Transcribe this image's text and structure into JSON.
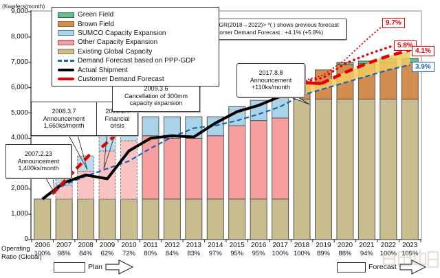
{
  "chart_data": {
    "type": "bar",
    "title": "",
    "unit_label": "(Kwafers/month)",
    "ylabel": "Kwafers/month",
    "ylim": [
      0,
      9000
    ],
    "ytick_step": 1000,
    "grid": false,
    "categories": [
      2006,
      2007,
      2008,
      2009,
      2010,
      2011,
      2012,
      2013,
      2014,
      2015,
      2016,
      2017,
      2018,
      2019,
      2020,
      2021,
      2022,
      2023
    ],
    "planned_years": [
      2007,
      2008,
      2009,
      2010
    ],
    "stack_series": [
      {
        "name": "Existing Global Capacity",
        "color": "#C9BD90",
        "planned_color": "#C9BD90",
        "values": [
          1600,
          1600,
          1600,
          1600,
          1600,
          1600,
          1600,
          1600,
          1600,
          1600,
          1600,
          1600,
          5550,
          5550,
          5550,
          5550,
          5550,
          5550
        ]
      },
      {
        "name": "Other Capacity Expansion",
        "color": "#F79E9E",
        "planned_color": "#F9C3C3",
        "values": [
          0,
          550,
          1100,
          1900,
          2300,
          2500,
          2400,
          2400,
          2500,
          2900,
          3100,
          3200,
          0,
          0,
          0,
          0,
          0,
          0
        ]
      },
      {
        "name": "SUMCO Capacity Expansion",
        "color": "#A9D3E6",
        "planned_color": "#BCDCEC",
        "values": [
          0,
          300,
          600,
          800,
          950,
          750,
          850,
          850,
          750,
          750,
          800,
          800,
          0,
          0,
          0,
          0,
          0,
          0
        ]
      },
      {
        "name": "Brown Field",
        "color": "#D38E4F",
        "planned_color": "#D38E4F",
        "values": [
          0,
          0,
          0,
          0,
          0,
          0,
          0,
          0,
          0,
          0,
          0,
          0,
          650,
          1150,
          1350,
          1400,
          1450,
          1450
        ]
      },
      {
        "name": "Green Field",
        "color": "#66BE8D",
        "planned_color": "#66BE8D",
        "values": [
          0,
          0,
          0,
          0,
          0,
          0,
          0,
          0,
          0,
          0,
          0,
          0,
          0,
          0,
          100,
          100,
          150,
          150
        ]
      }
    ],
    "lines": [
      {
        "name": "Demand Forecast based on PPP-GDP",
        "color": "#1B62B5",
        "width": 2.2,
        "dash": "7,4",
        "points": [
          [
            2006,
            1600
          ],
          [
            2007,
            2150
          ],
          [
            2008,
            2500
          ],
          [
            2009,
            2800
          ],
          [
            2010,
            3100
          ],
          [
            2011,
            3600
          ],
          [
            2012,
            4050
          ],
          [
            2013,
            4400
          ],
          [
            2014,
            4500
          ],
          [
            2015,
            4700
          ],
          [
            2016,
            4950
          ],
          [
            2017,
            5250
          ],
          [
            2018,
            5700
          ],
          [
            2019,
            5950
          ],
          [
            2020,
            6200
          ],
          [
            2021,
            6450
          ],
          [
            2022,
            6700
          ],
          [
            2023,
            6900
          ]
        ]
      },
      {
        "name": "Actual Shipment",
        "color": "#000000",
        "width": 4,
        "dash": "",
        "points": [
          [
            2006,
            1600
          ],
          [
            2007,
            2250
          ],
          [
            2008,
            2550
          ],
          [
            2009,
            2400
          ],
          [
            2010,
            3500
          ],
          [
            2011,
            4000
          ],
          [
            2012,
            4100
          ],
          [
            2013,
            4050
          ],
          [
            2014,
            4600
          ],
          [
            2015,
            5050
          ],
          [
            2016,
            5300
          ],
          [
            2017,
            5650
          ],
          [
            2018,
            6200
          ]
        ]
      },
      {
        "name": "Customer Demand Forecast 2007 announcement",
        "color": "#E60000",
        "width": 4.5,
        "dash": "11,6",
        "points": [
          [
            2006.45,
            1800
          ],
          [
            2008.3,
            3450
          ]
        ]
      },
      {
        "name": "Customer Demand Forecast 2008 announcement",
        "color": "#E60000",
        "width": 4.5,
        "dash": "11,6",
        "points": [
          [
            2008.75,
            3650
          ],
          [
            2010.35,
            4850
          ]
        ]
      },
      {
        "name": "Customer Demand Forecast current solid",
        "color": "#E60000",
        "width": 4.5,
        "dash": "",
        "points": [
          [
            2017.9,
            6130
          ],
          [
            2018,
            6200
          ],
          [
            2018.9,
            6160
          ]
        ]
      },
      {
        "name": "Customer Demand Forecast current +4.1%",
        "color": "#E60000",
        "width": 4.5,
        "dash": "12,7",
        "points": [
          [
            2018.9,
            6160
          ],
          [
            2020,
            6600
          ],
          [
            2021,
            6950
          ],
          [
            2022,
            7250
          ],
          [
            2023,
            7480
          ]
        ]
      },
      {
        "name": "Previous forecast +5.8%",
        "color": "#E60000",
        "width": 3.4,
        "dash": "0.5,6.5",
        "cap": "round",
        "points": [
          [
            2018.2,
            6250
          ],
          [
            2019,
            6400
          ],
          [
            2020,
            6950
          ],
          [
            2021,
            7300
          ],
          [
            2022.2,
            7650
          ]
        ]
      },
      {
        "name": "Previous forecast +9.7%",
        "color": "#E60000",
        "width": 1.9,
        "dash": "0.5,4.5",
        "cap": "round",
        "points": [
          [
            2018,
            6250
          ],
          [
            2019,
            6500
          ],
          [
            2020,
            7100
          ],
          [
            2021,
            7900
          ],
          [
            2021.75,
            8450
          ]
        ]
      }
    ],
    "band": {
      "name": "forecast gap highlight",
      "color": "#F1CB5F",
      "opacity": 0.85,
      "upper": [
        [
          2017.9,
          6130
        ],
        [
          2018.9,
          6160
        ],
        [
          2020,
          6600
        ],
        [
          2021,
          6950
        ],
        [
          2022,
          7250
        ],
        [
          2023,
          7480
        ]
      ],
      "lower": [
        [
          2023,
          6900
        ],
        [
          2022,
          6700
        ],
        [
          2021,
          6450
        ],
        [
          2020,
          6200
        ],
        [
          2019,
          5950
        ],
        [
          2018,
          5700
        ],
        [
          2017.9,
          5680
        ]
      ]
    }
  },
  "legend": {
    "items": [
      {
        "label": "Green Field",
        "kind": "box",
        "color": "#66BE8D",
        "border": "#2f7a52"
      },
      {
        "label": "Brown Field",
        "kind": "box",
        "color": "#D38E4F",
        "border": "#8a5a28"
      },
      {
        "label": "SUMCO Capacity Expansion",
        "kind": "box",
        "color": "#A9D3E6",
        "border": "#5b89a0"
      },
      {
        "label": "Other Capacity Expansion",
        "kind": "box",
        "color": "#F79E9E",
        "border": "#a05555"
      },
      {
        "label": "Existing Global Capacity",
        "kind": "box",
        "color": "#C9BD90",
        "border": "#807650"
      },
      {
        "label": "Demand Forecast based on PPP-GDP",
        "kind": "dash-line",
        "color": "#1B62B5"
      },
      {
        "label": "Actual Shipment",
        "kind": "line",
        "color": "#000000"
      },
      {
        "label": "Customer Demand Forecast",
        "kind": "line",
        "color": "#E60000"
      }
    ]
  },
  "annotations": {
    "cagr_note": {
      "line1": "<CAGR(2018→2022)> *(  ) shows previous forecast",
      "line2": "Customer Demand Forecast : +4.1% (+5.8%)"
    },
    "callouts": [
      {
        "id": "a2007",
        "text": "2007.2.23\nAnnouncement\n1,400ks/month"
      },
      {
        "id": "a2008",
        "text": "2008.3.7\nAnnouncement\n1,660ks/month"
      },
      {
        "id": "crisis",
        "text": "2008/2H\nFinancial\ncrisis"
      },
      {
        "id": "a2009",
        "text": "2009.3.6\nCancellation of 300mm\ncapacity expansion"
      },
      {
        "id": "a2017",
        "text": "2017.8.8\nAnnouncement\n+110ks/month"
      }
    ]
  },
  "end_labels": [
    {
      "text": "9.7%",
      "style": "red"
    },
    {
      "text": "5.8%",
      "style": "red"
    },
    {
      "text": "4.1%",
      "style": "red"
    },
    {
      "text": "3.9%",
      "style": "blue"
    }
  ],
  "operating_ratio": {
    "label": "Operating\nRatio (Global)",
    "values": [
      "100%",
      "98%",
      "84%",
      "62%",
      "72%",
      "80%",
      "84%",
      "83%",
      "97%",
      "95%",
      "95%",
      "100%",
      "100%",
      "89%",
      "88%",
      "94%",
      "100%",
      "105%"
    ]
  },
  "footer": {
    "plan_label": "Plan",
    "forecast_label": "Forecast"
  }
}
